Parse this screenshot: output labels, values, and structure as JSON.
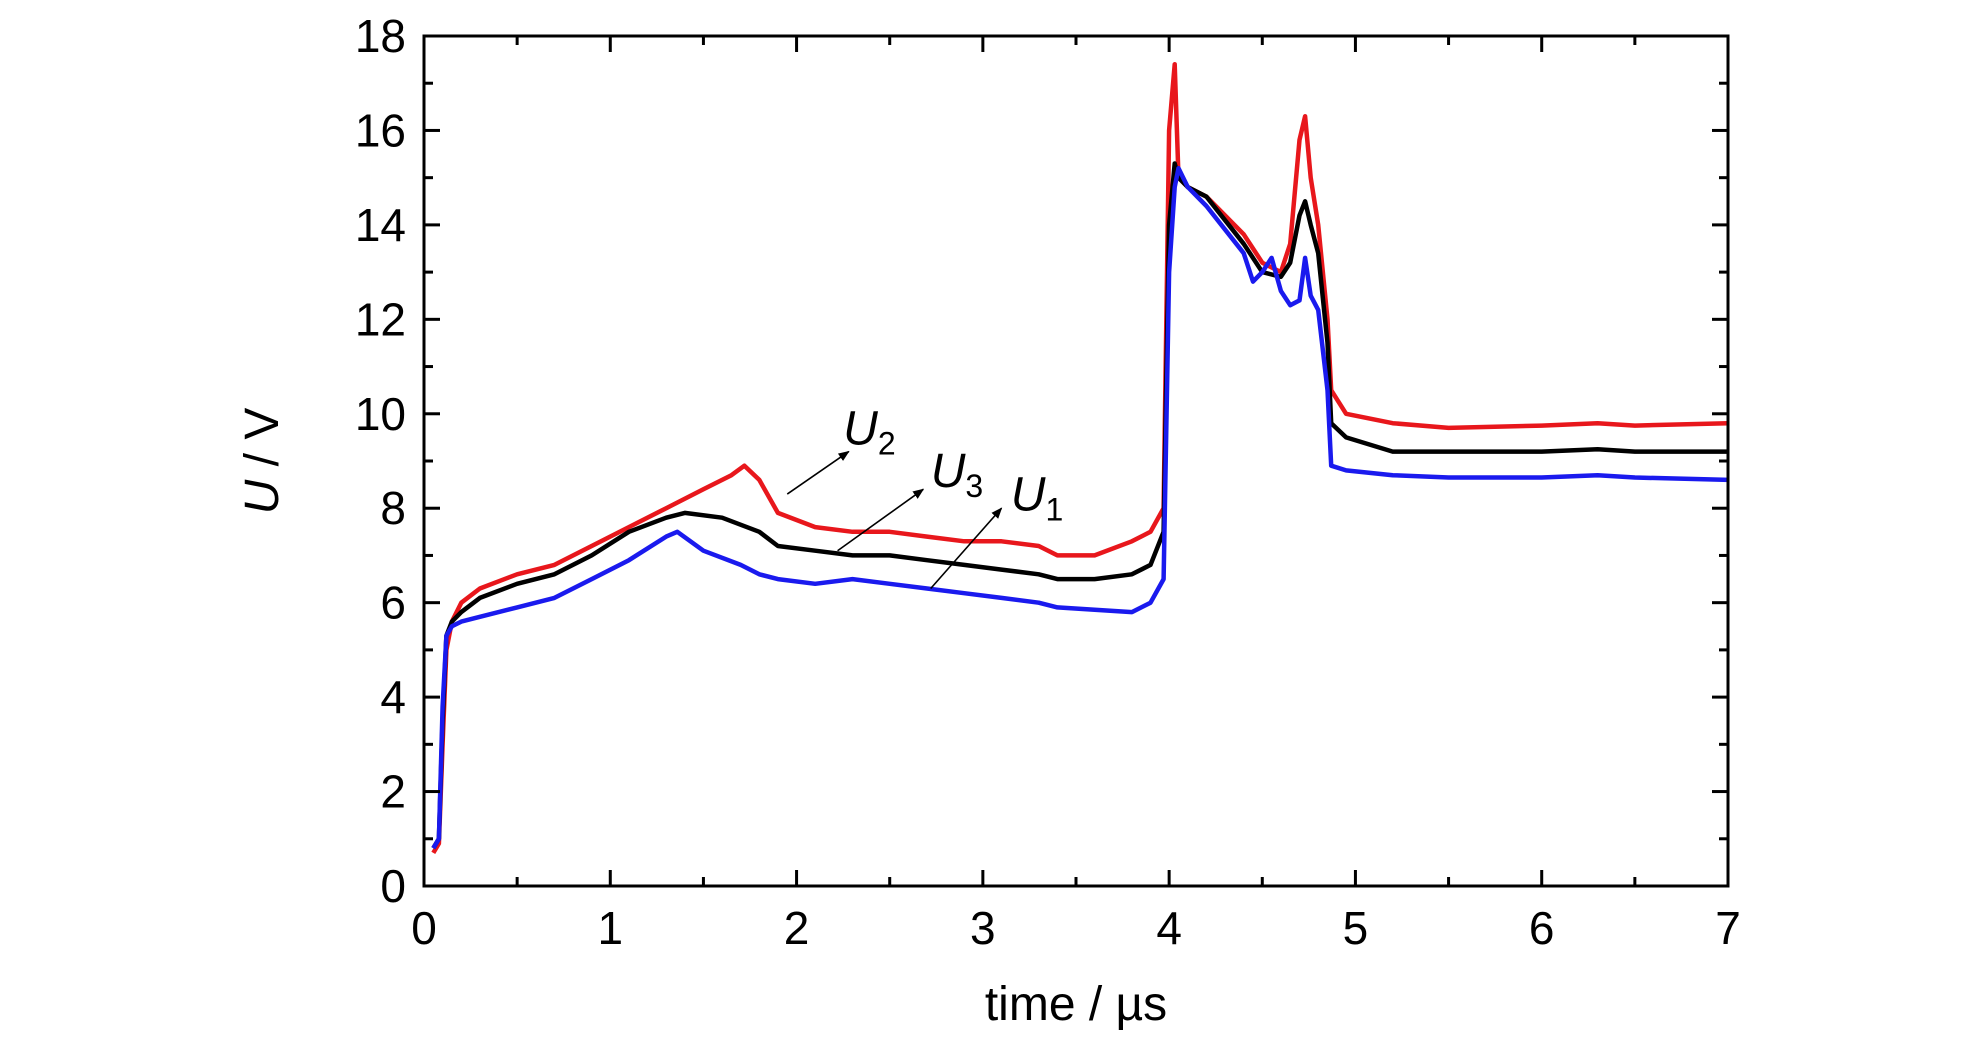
{
  "chart_data": {
    "type": "line",
    "xlabel": "time / µs",
    "ylabel_var": "U",
    "ylabel_unit": " / V",
    "xlim": [
      0,
      7
    ],
    "ylim": [
      0,
      18
    ],
    "xticks": [
      0,
      1,
      2,
      3,
      4,
      5,
      6,
      7
    ],
    "yticks": [
      0,
      2,
      4,
      6,
      8,
      10,
      12,
      14,
      16,
      18
    ],
    "grid": false,
    "legend": "none",
    "series": [
      {
        "symbol": "U",
        "subscript": "2",
        "color": "#e8171c",
        "x": [
          0.05,
          0.08,
          0.1,
          0.12,
          0.15,
          0.2,
          0.3,
          0.5,
          0.7,
          0.9,
          1.1,
          1.3,
          1.5,
          1.65,
          1.72,
          1.8,
          1.9,
          2.1,
          2.3,
          2.5,
          2.7,
          2.9,
          3.1,
          3.3,
          3.4,
          3.6,
          3.8,
          3.9,
          3.97,
          4.0,
          4.03,
          4.05,
          4.1,
          4.2,
          4.4,
          4.5,
          4.6,
          4.65,
          4.7,
          4.73,
          4.76,
          4.8,
          4.85,
          4.87,
          4.95,
          5.2,
          5.5,
          6.0,
          6.3,
          6.5,
          7.0
        ],
        "y": [
          0.7,
          0.9,
          3.0,
          5.0,
          5.6,
          6.0,
          6.3,
          6.6,
          6.8,
          7.2,
          7.6,
          8.0,
          8.4,
          8.7,
          8.9,
          8.6,
          7.9,
          7.6,
          7.5,
          7.5,
          7.4,
          7.3,
          7.3,
          7.2,
          7.0,
          7.0,
          7.3,
          7.5,
          8.0,
          16.0,
          17.4,
          15.0,
          14.8,
          14.6,
          13.8,
          13.2,
          13.0,
          13.6,
          15.8,
          16.3,
          15.0,
          14.0,
          12.0,
          10.5,
          10.0,
          9.8,
          9.7,
          9.75,
          9.8,
          9.75,
          9.8
        ]
      },
      {
        "symbol": "U",
        "subscript": "3",
        "color": "#000000",
        "x": [
          0.05,
          0.08,
          0.1,
          0.12,
          0.15,
          0.2,
          0.3,
          0.5,
          0.7,
          0.9,
          1.1,
          1.3,
          1.4,
          1.6,
          1.8,
          1.9,
          2.1,
          2.3,
          2.5,
          2.7,
          2.9,
          3.1,
          3.3,
          3.4,
          3.6,
          3.8,
          3.9,
          3.97,
          4.0,
          4.03,
          4.05,
          4.1,
          4.2,
          4.4,
          4.5,
          4.6,
          4.65,
          4.7,
          4.73,
          4.76,
          4.8,
          4.85,
          4.87,
          4.95,
          5.2,
          5.5,
          6.0,
          6.3,
          6.5,
          7.0
        ],
        "y": [
          0.8,
          1.0,
          3.5,
          5.3,
          5.6,
          5.8,
          6.1,
          6.4,
          6.6,
          7.0,
          7.5,
          7.8,
          7.9,
          7.8,
          7.5,
          7.2,
          7.1,
          7.0,
          7.0,
          6.9,
          6.8,
          6.7,
          6.6,
          6.5,
          6.5,
          6.6,
          6.8,
          7.5,
          14.0,
          15.3,
          15.0,
          14.8,
          14.6,
          13.6,
          13.0,
          12.9,
          13.2,
          14.2,
          14.5,
          14.0,
          13.4,
          11.5,
          9.8,
          9.5,
          9.2,
          9.2,
          9.2,
          9.25,
          9.2,
          9.2
        ]
      },
      {
        "symbol": "U",
        "subscript": "1",
        "color": "#1a1aee",
        "x": [
          0.05,
          0.08,
          0.1,
          0.12,
          0.15,
          0.2,
          0.3,
          0.5,
          0.7,
          0.9,
          1.1,
          1.3,
          1.36,
          1.5,
          1.7,
          1.8,
          1.9,
          2.1,
          2.3,
          2.5,
          2.7,
          2.9,
          3.1,
          3.3,
          3.4,
          3.6,
          3.8,
          3.9,
          3.97,
          4.0,
          4.03,
          4.05,
          4.1,
          4.2,
          4.4,
          4.45,
          4.5,
          4.55,
          4.6,
          4.65,
          4.7,
          4.73,
          4.76,
          4.8,
          4.85,
          4.87,
          4.95,
          5.2,
          5.5,
          6.0,
          6.3,
          6.5,
          7.0
        ],
        "y": [
          0.8,
          1.0,
          3.8,
          5.3,
          5.5,
          5.6,
          5.7,
          5.9,
          6.1,
          6.5,
          6.9,
          7.4,
          7.5,
          7.1,
          6.8,
          6.6,
          6.5,
          6.4,
          6.5,
          6.4,
          6.3,
          6.2,
          6.1,
          6.0,
          5.9,
          5.85,
          5.8,
          6.0,
          6.5,
          13.0,
          14.8,
          15.2,
          14.8,
          14.4,
          13.4,
          12.8,
          13.0,
          13.3,
          12.6,
          12.3,
          12.4,
          13.3,
          12.5,
          12.2,
          10.5,
          8.9,
          8.8,
          8.7,
          8.65,
          8.65,
          8.7,
          8.65,
          8.6
        ]
      }
    ],
    "annotations": [
      {
        "symbol": "U",
        "subscript": "2",
        "from": [
          1.95,
          8.3
        ],
        "to": [
          2.28,
          9.2
        ],
        "text_at": [
          2.25,
          9.35
        ]
      },
      {
        "symbol": "U",
        "subscript": "3",
        "from": [
          2.22,
          7.1
        ],
        "to": [
          2.68,
          8.4
        ],
        "text_at": [
          2.72,
          8.45
        ]
      },
      {
        "symbol": "U",
        "subscript": "1",
        "from": [
          2.72,
          6.3
        ],
        "to": [
          3.1,
          8.0
        ],
        "text_at": [
          3.15,
          7.95
        ]
      }
    ]
  }
}
